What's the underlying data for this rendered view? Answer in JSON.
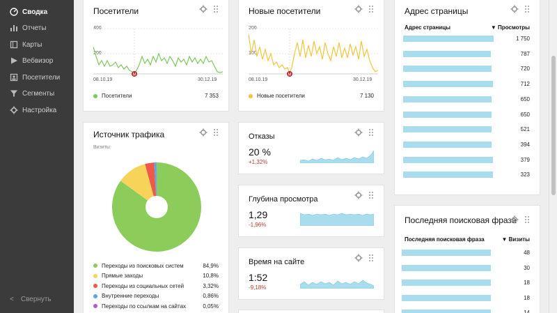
{
  "sidebar": {
    "items": [
      {
        "label": "Сводка",
        "icon": "gauge-icon",
        "active": true
      },
      {
        "label": "Отчеты",
        "icon": "bar-chart-icon"
      },
      {
        "label": "Карты",
        "icon": "map-icon"
      },
      {
        "label": "Вебвизор",
        "icon": "play-icon"
      },
      {
        "label": "Посетители",
        "icon": "users-icon"
      },
      {
        "label": "Сегменты",
        "icon": "filter-icon"
      },
      {
        "label": "Настройка",
        "icon": "gear-icon"
      }
    ],
    "collapse_label": "Свернуть"
  },
  "visitors_card": {
    "title": "Посетители",
    "y_ticks": [
      "400",
      "200"
    ],
    "x_start": "08.10.19",
    "x_end": "30.12.19",
    "marker": "M",
    "legend_label": "Посетители",
    "legend_value": "7 353",
    "color": "#7dc85c"
  },
  "new_visitors_card": {
    "title": "Новые посетители",
    "y_ticks": [
      "200",
      "100"
    ],
    "x_start": "08.10.19",
    "x_end": "30.12.19",
    "marker": "M",
    "legend_label": "Новые посетители",
    "legend_value": "7 130",
    "color": "#f0c63a"
  },
  "page_address_card": {
    "title": "Адрес страницы",
    "col_left": "Адрес страницы",
    "col_right": "▼ Просмотры",
    "rows": [
      {
        "value": "1 750",
        "fill": 1.0
      },
      {
        "value": "787",
        "fill": 0.97
      },
      {
        "value": "720",
        "fill": 0.98
      },
      {
        "value": "712",
        "fill": 0.99
      },
      {
        "value": "650",
        "fill": 0.98
      },
      {
        "value": "650",
        "fill": 0.98
      },
      {
        "value": "521",
        "fill": 0.98
      },
      {
        "value": "394",
        "fill": 0.98
      },
      {
        "value": "379",
        "fill": 0.99
      },
      {
        "value": "323",
        "fill": 0.99
      }
    ]
  },
  "traffic_card": {
    "title": "Источник трафика",
    "subtitle": "Визиты",
    "sources": [
      {
        "label": "Переходы из поисковых систем",
        "value": "84,9%",
        "color": "#8ccc5a"
      },
      {
        "label": "Прямые заходы",
        "value": "10,8%",
        "color": "#f7d35a"
      },
      {
        "label": "Переходы из социальных сетей",
        "value": "3,32%",
        "color": "#ee5a4a"
      },
      {
        "label": "Внутренние переходы",
        "value": "0,86%",
        "color": "#5aa6e6"
      },
      {
        "label": "Переходы по ссылкам на сайтах",
        "value": "0,05%",
        "color": "#b05ad2"
      }
    ]
  },
  "bounce_card": {
    "title": "Отказы",
    "value": "20 %",
    "change": "+1,32%"
  },
  "depth_card": {
    "title": "Глубина просмотра",
    "value": "1,29",
    "change": "-1,96%"
  },
  "time_card": {
    "title": "Время на сайте",
    "value": "1:52",
    "change": "-9,18%"
  },
  "search_card": {
    "title": "Последняя поисковая фраза",
    "col_left": "Последняя поисковая фраза",
    "col_right": "▼ Визиты",
    "rows": [
      {
        "value": "48",
        "fill": 1.0
      },
      {
        "value": "30",
        "fill": 1.0
      },
      {
        "value": "18",
        "fill": 1.0
      },
      {
        "value": "18",
        "fill": 1.0
      },
      {
        "value": "14",
        "fill": 1.0
      }
    ]
  },
  "colors": {
    "sidebar": "#3b3b3b",
    "bar": "#a9dced",
    "negative": "#c0392b"
  }
}
